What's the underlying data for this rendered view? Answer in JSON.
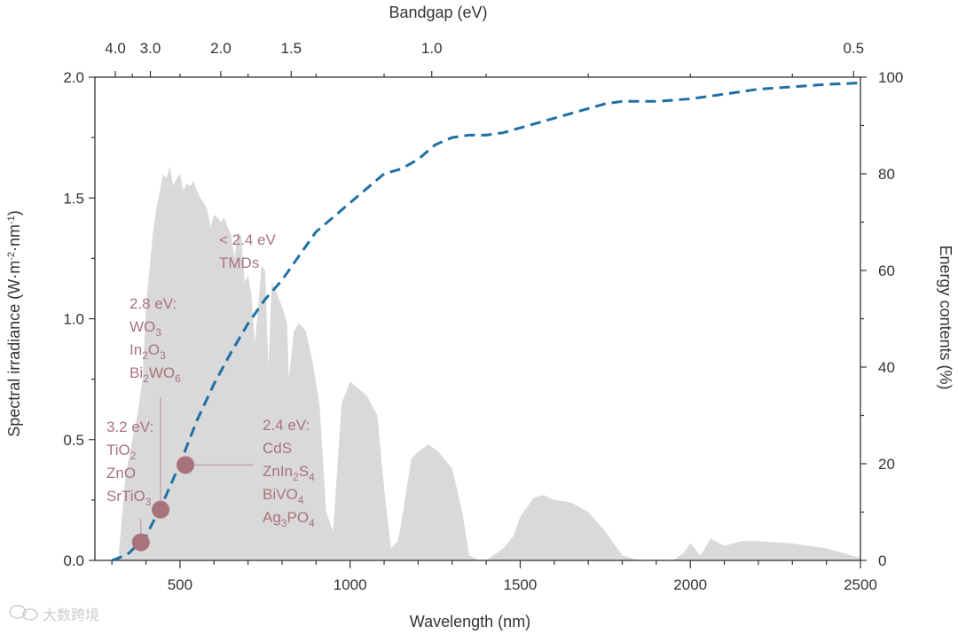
{
  "chart_data": {
    "type": "area",
    "title": "",
    "xlabel": "Wavelength (nm)",
    "ylabel": "Spectral irradiance (W·m⁻²·nm⁻¹)",
    "ylabel_parts": [
      "Spectral irradiance (W·m",
      "-2",
      "·nm",
      "-1",
      ")"
    ],
    "y2label": "Energy contents (%)",
    "toplabel": "Bandgap (eV)",
    "xlim": [
      250,
      2500
    ],
    "ylim": [
      0,
      2.0
    ],
    "y2lim": [
      0,
      100
    ],
    "x_ticks": [
      500,
      1000,
      1500,
      2000,
      2500
    ],
    "y_ticks": [
      "0.0",
      "0.5",
      "1.0",
      "1.5",
      "2.0"
    ],
    "y2_ticks": [
      "0",
      "20",
      "40",
      "60",
      "80",
      "100"
    ],
    "top_ticks": [
      {
        "label": "4.0",
        "wavelength": 310
      },
      {
        "label": "3.0",
        "wavelength": 413
      },
      {
        "label": "2.0",
        "wavelength": 620
      },
      {
        "label": "1.5",
        "wavelength": 827
      },
      {
        "label": "1.0",
        "wavelength": 1240
      },
      {
        "label": "0.5",
        "wavelength": 2480
      }
    ],
    "series": [
      {
        "name": "Spectral irradiance",
        "color": "#d9d9d9",
        "points": [
          [
            280,
            0
          ],
          [
            300,
            0
          ],
          [
            320,
            0.02
          ],
          [
            340,
            0.35
          ],
          [
            360,
            0.5
          ],
          [
            375,
            0.6
          ],
          [
            390,
            0.75
          ],
          [
            400,
            1.05
          ],
          [
            410,
            1.2
          ],
          [
            420,
            1.35
          ],
          [
            430,
            1.45
          ],
          [
            440,
            1.52
          ],
          [
            450,
            1.6
          ],
          [
            460,
            1.58
          ],
          [
            470,
            1.63
          ],
          [
            480,
            1.55
          ],
          [
            490,
            1.58
          ],
          [
            500,
            1.6
          ],
          [
            510,
            1.53
          ],
          [
            520,
            1.56
          ],
          [
            530,
            1.55
          ],
          [
            540,
            1.57
          ],
          [
            550,
            1.53
          ],
          [
            560,
            1.5
          ],
          [
            570,
            1.48
          ],
          [
            580,
            1.45
          ],
          [
            590,
            1.38
          ],
          [
            600,
            1.43
          ],
          [
            610,
            1.42
          ],
          [
            620,
            1.4
          ],
          [
            630,
            1.42
          ],
          [
            640,
            1.38
          ],
          [
            650,
            1.35
          ],
          [
            660,
            1.25
          ],
          [
            670,
            1.36
          ],
          [
            680,
            1.34
          ],
          [
            690,
            1.15
          ],
          [
            700,
            1.18
          ],
          [
            710,
            1.1
          ],
          [
            720,
            0.9
          ],
          [
            730,
            1.05
          ],
          [
            740,
            1.22
          ],
          [
            750,
            1.2
          ],
          [
            760,
            0.8
          ],
          [
            770,
            1.15
          ],
          [
            780,
            1.12
          ],
          [
            800,
            1.05
          ],
          [
            815,
            0.98
          ],
          [
            820,
            0.75
          ],
          [
            835,
            0.95
          ],
          [
            850,
            0.98
          ],
          [
            870,
            0.95
          ],
          [
            890,
            0.82
          ],
          [
            910,
            0.65
          ],
          [
            930,
            0.2
          ],
          [
            950,
            0.12
          ],
          [
            975,
            0.65
          ],
          [
            1000,
            0.74
          ],
          [
            1050,
            0.68
          ],
          [
            1080,
            0.6
          ],
          [
            1100,
            0.3
          ],
          [
            1120,
            0.05
          ],
          [
            1140,
            0.08
          ],
          [
            1150,
            0.15
          ],
          [
            1180,
            0.42
          ],
          [
            1200,
            0.45
          ],
          [
            1230,
            0.48
          ],
          [
            1260,
            0.45
          ],
          [
            1300,
            0.38
          ],
          [
            1330,
            0.2
          ],
          [
            1350,
            0.02
          ],
          [
            1380,
            0
          ],
          [
            1400,
            0
          ],
          [
            1450,
            0.05
          ],
          [
            1480,
            0.1
          ],
          [
            1500,
            0.18
          ],
          [
            1540,
            0.26
          ],
          [
            1570,
            0.27
          ],
          [
            1600,
            0.25
          ],
          [
            1650,
            0.24
          ],
          [
            1700,
            0.2
          ],
          [
            1750,
            0.12
          ],
          [
            1800,
            0.02
          ],
          [
            1850,
            0
          ],
          [
            1950,
            0
          ],
          [
            1980,
            0.03
          ],
          [
            2000,
            0.07
          ],
          [
            2030,
            0.02
          ],
          [
            2060,
            0.09
          ],
          [
            2100,
            0.06
          ],
          [
            2150,
            0.08
          ],
          [
            2200,
            0.08
          ],
          [
            2300,
            0.07
          ],
          [
            2400,
            0.05
          ],
          [
            2450,
            0.03
          ],
          [
            2500,
            0.01
          ]
        ]
      },
      {
        "name": "Energy contents",
        "color": "#1f6fa5",
        "style": "dashed",
        "points": [
          [
            300,
            0
          ],
          [
            320,
            0.5
          ],
          [
            350,
            1.5
          ],
          [
            400,
            5
          ],
          [
            450,
            12
          ],
          [
            500,
            20
          ],
          [
            550,
            29
          ],
          [
            600,
            36.5
          ],
          [
            650,
            43
          ],
          [
            700,
            49
          ],
          [
            750,
            54
          ],
          [
            800,
            58
          ],
          [
            850,
            63
          ],
          [
            900,
            68
          ],
          [
            950,
            71
          ],
          [
            1000,
            74
          ],
          [
            1050,
            77
          ],
          [
            1100,
            80
          ],
          [
            1150,
            81
          ],
          [
            1200,
            83
          ],
          [
            1250,
            86
          ],
          [
            1300,
            87.5
          ],
          [
            1350,
            88
          ],
          [
            1400,
            88
          ],
          [
            1450,
            88.5
          ],
          [
            1500,
            89.5
          ],
          [
            1550,
            90.5
          ],
          [
            1600,
            91.5
          ],
          [
            1650,
            92.5
          ],
          [
            1700,
            93.5
          ],
          [
            1750,
            94.5
          ],
          [
            1800,
            95
          ],
          [
            1900,
            95
          ],
          [
            2000,
            95.5
          ],
          [
            2100,
            96.5
          ],
          [
            2200,
            97.5
          ],
          [
            2300,
            98
          ],
          [
            2400,
            98.5
          ],
          [
            2500,
            98.8
          ]
        ]
      }
    ],
    "markers": [
      {
        "x": 385,
        "y": 0.075,
        "label_lines": [
          [
            "3.2 eV:"
          ],
          [
            "Ti",
            "O",
            "2"
          ],
          [
            "ZnO"
          ],
          [
            "SrTi",
            "O",
            "3"
          ]
        ],
        "color": "#a8737d"
      },
      {
        "x": 443,
        "y": 0.21,
        "label_lines": [
          [
            "2.8 eV:"
          ],
          [
            "W",
            "O",
            "3"
          ],
          [
            "In",
            "2",
            "O",
            "3"
          ],
          [
            "Bi",
            "2",
            "WO",
            "6"
          ]
        ],
        "color": "#a8737d"
      },
      {
        "x": 516,
        "y": 0.395,
        "label_lines": [
          [
            "2.4 eV:"
          ],
          [
            "CdS"
          ],
          [
            "ZnIn",
            "2",
            "S",
            "4"
          ],
          [
            "BiV",
            "O",
            "4"
          ],
          [
            "Ag",
            "3",
            "PO",
            "4"
          ]
        ],
        "color": "#a8737d"
      }
    ],
    "annotation_tmds": [
      "< 2.4 eV",
      "TMDs"
    ],
    "annotation_color": "#a8737d",
    "axis_title_color": "#a8737d",
    "y2_color": "#1f6fa5"
  },
  "watermark": {
    "text": "大数跨境",
    "icon": "wechat-logo-icon"
  }
}
